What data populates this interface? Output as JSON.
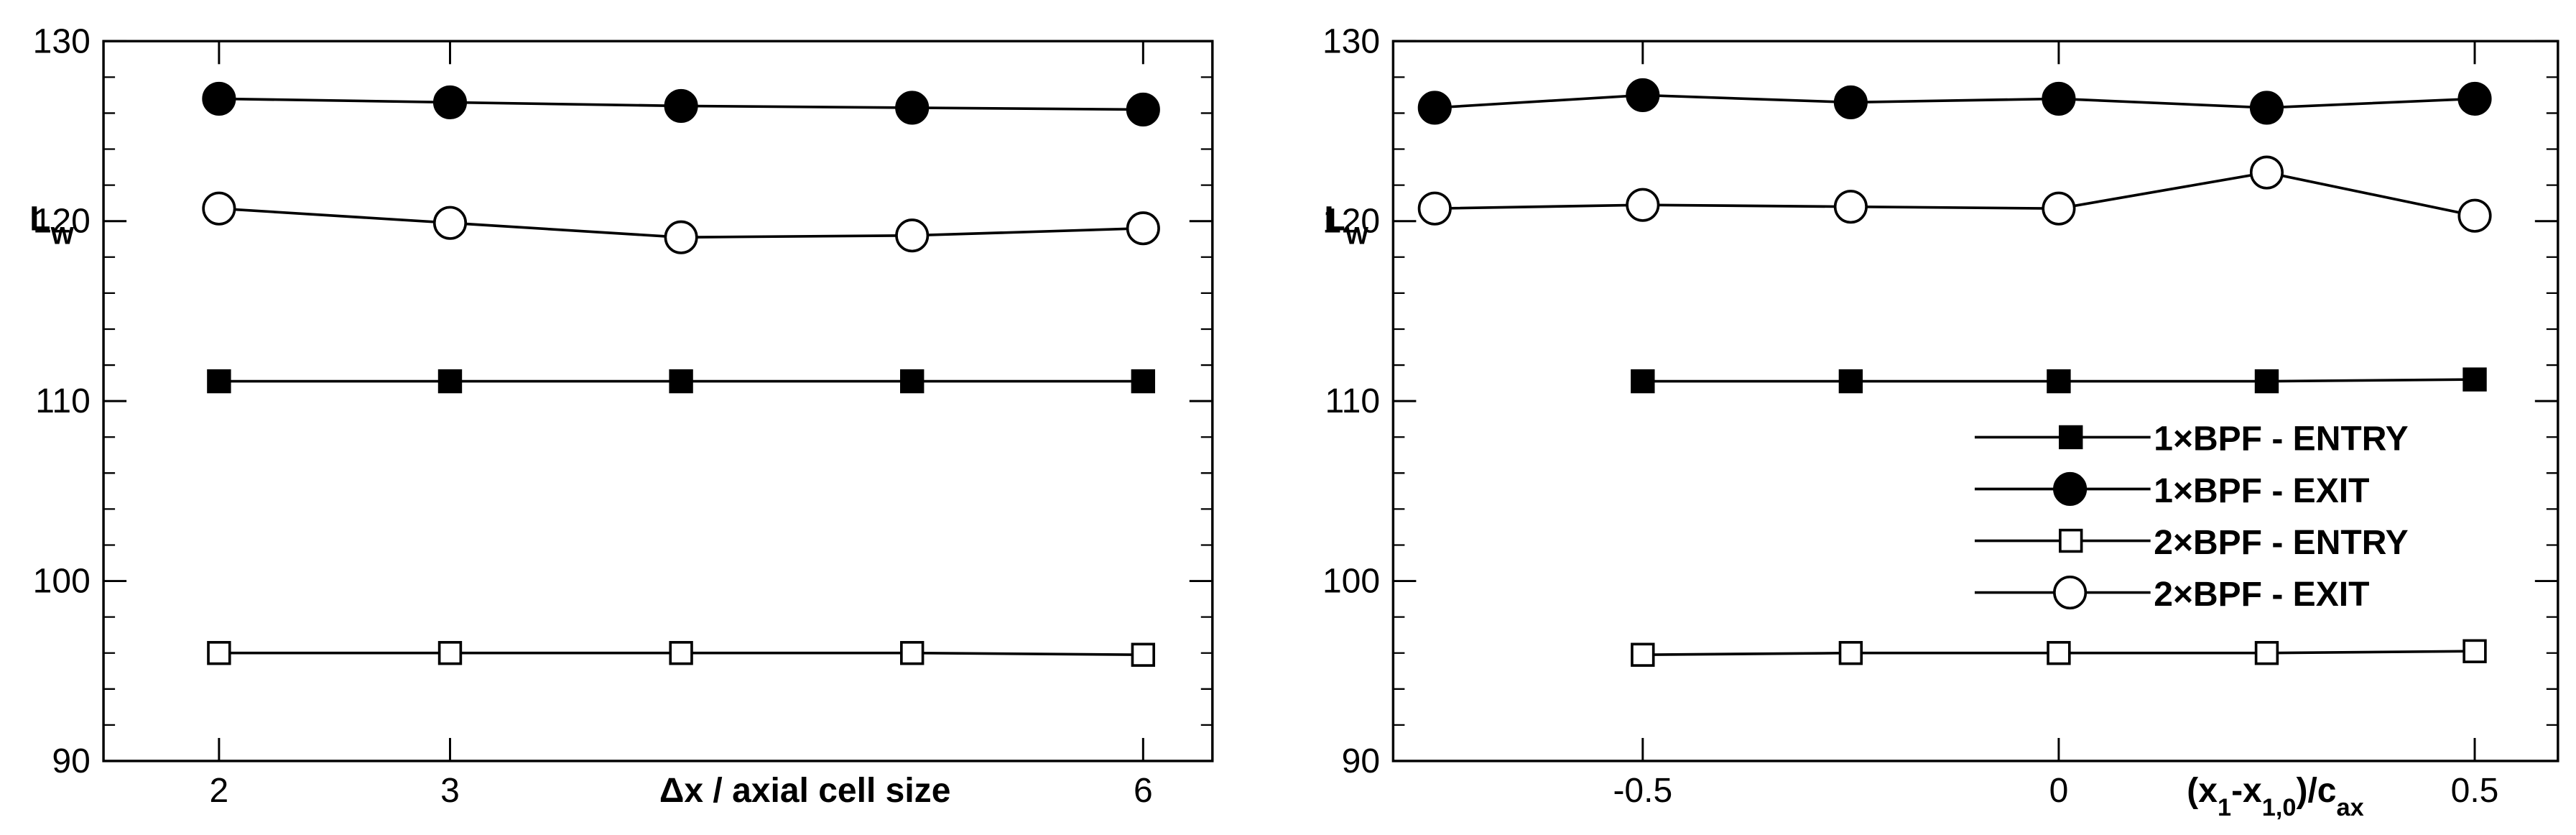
{
  "chart_data": [
    {
      "type": "line",
      "xlabel": [
        {
          "text": "Δx / axial cell size",
          "sub": false
        }
      ],
      "ylabel": [
        {
          "text": "L",
          "sub": false
        },
        {
          "text": "W",
          "sub": true
        }
      ],
      "x": [
        2,
        3,
        4,
        5,
        6
      ],
      "xlim": [
        1.5,
        6.3
      ],
      "xticks": [
        2,
        3,
        6
      ],
      "ylim": [
        90,
        130
      ],
      "yticks": [
        90,
        100,
        110,
        120,
        130
      ],
      "yminorticks": [
        92,
        94,
        96,
        98,
        102,
        104,
        106,
        108,
        112,
        114,
        116,
        118,
        122,
        124,
        126,
        128
      ],
      "series": [
        {
          "name": "1×BPF - ENTRY",
          "color": "#000000",
          "marker": "square",
          "filled": true,
          "values": [
            111.1,
            111.1,
            111.1,
            111.1,
            111.1
          ]
        },
        {
          "name": "1×BPF - EXIT",
          "color": "#000000",
          "marker": "circle",
          "filled": true,
          "values": [
            126.8,
            126.6,
            126.4,
            126.3,
            126.2
          ]
        },
        {
          "name": "2×BPF - ENTRY",
          "color": "#000000",
          "marker": "square",
          "filled": false,
          "values": [
            96.0,
            96.0,
            96.0,
            96.0,
            95.9
          ]
        },
        {
          "name": "2×BPF - EXIT",
          "color": "#000000",
          "marker": "circle",
          "filled": false,
          "values": [
            120.7,
            119.9,
            119.1,
            119.2,
            119.6
          ]
        }
      ]
    },
    {
      "type": "line",
      "xlabel": [
        {
          "text": "(x",
          "sub": false
        },
        {
          "text": "1",
          "sub": true
        },
        {
          "text": "-x",
          "sub": false
        },
        {
          "text": "1,0",
          "sub": true
        },
        {
          "text": ")/c",
          "sub": false
        },
        {
          "text": "ax",
          "sub": true
        }
      ],
      "ylabel": [
        {
          "text": "L",
          "sub": false
        },
        {
          "text": "W",
          "sub": true
        }
      ],
      "x": [
        -0.75,
        -0.5,
        -0.25,
        0,
        0.25,
        0.5
      ],
      "xlim": [
        -0.8,
        0.6
      ],
      "xticks": [
        -0.5,
        0,
        0.5
      ],
      "ylim": [
        90,
        130
      ],
      "yticks": [
        90,
        100,
        110,
        120,
        130
      ],
      "yminorticks": [
        92,
        94,
        96,
        98,
        102,
        104,
        106,
        108,
        112,
        114,
        116,
        118,
        122,
        124,
        126,
        128
      ],
      "legend": "lower right",
      "series": [
        {
          "name": "1×BPF - ENTRY",
          "color": "#000000",
          "marker": "square",
          "filled": true,
          "values": [
            null,
            111.1,
            111.1,
            111.1,
            111.1,
            111.2
          ]
        },
        {
          "name": "1×BPF - EXIT",
          "color": "#000000",
          "marker": "circle",
          "filled": true,
          "values": [
            126.3,
            127.0,
            126.6,
            126.8,
            126.3,
            126.8
          ]
        },
        {
          "name": "2×BPF - ENTRY",
          "color": "#000000",
          "marker": "square",
          "filled": false,
          "values": [
            null,
            95.9,
            96.0,
            96.0,
            96.0,
            96.1
          ]
        },
        {
          "name": "2×BPF - EXIT",
          "color": "#000000",
          "marker": "circle",
          "filled": false,
          "values": [
            120.7,
            120.9,
            120.8,
            120.7,
            122.7,
            120.3
          ]
        }
      ]
    }
  ]
}
